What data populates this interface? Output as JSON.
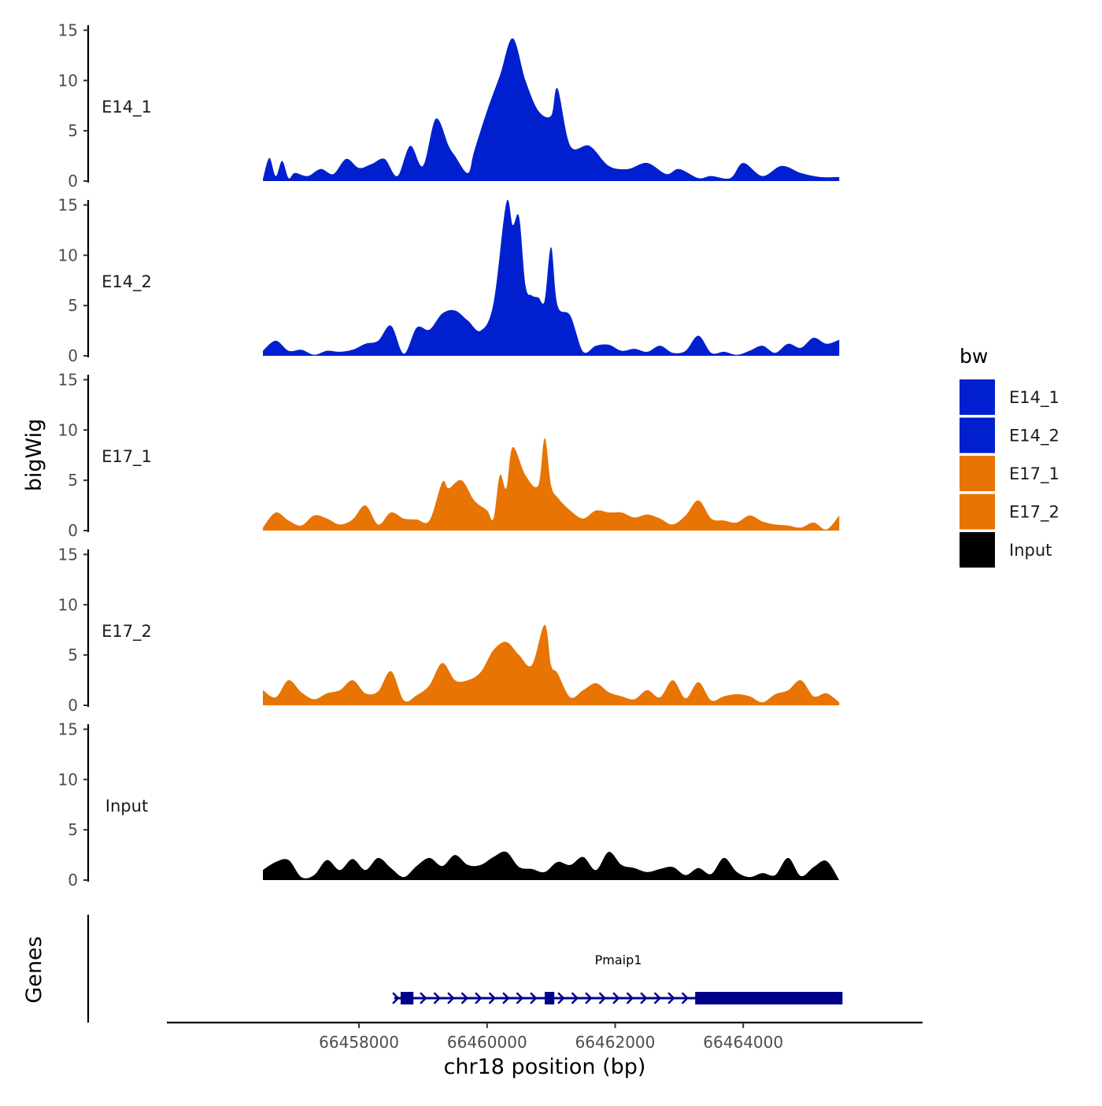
{
  "chart_data": {
    "type": "area",
    "title": "",
    "xlabel": "chr18 position (bp)",
    "ylabel": "bigWig",
    "gene_track_label": "Genes",
    "xlim": [
      66455000,
      66466800
    ],
    "x_ticks": [
      66458000,
      66460000,
      66462000,
      66464000
    ],
    "x_tick_labels": [
      "66458000",
      "66460000",
      "66462000",
      "66464000"
    ],
    "ylim": [
      0,
      15.5
    ],
    "y_ticks": [
      0,
      5,
      10,
      15
    ],
    "y_tick_labels": [
      "0",
      "5",
      "10",
      "15"
    ],
    "legend": {
      "title": "bw",
      "position": "right",
      "entries": [
        {
          "name": "E14_1",
          "color": "#0020CF"
        },
        {
          "name": "E14_2",
          "color": "#0020CF"
        },
        {
          "name": "E17_1",
          "color": "#E87404"
        },
        {
          "name": "E17_2",
          "color": "#E87404"
        },
        {
          "name": "Input",
          "color": "#000000"
        }
      ]
    },
    "series": [
      {
        "name": "E14_1",
        "color": "#0020CF",
        "x": [
          66456500,
          66456600,
          66456700,
          66456800,
          66456900,
          66457000,
          66457200,
          66457400,
          66457600,
          66457800,
          66458000,
          66458200,
          66458400,
          66458600,
          66458800,
          66459000,
          66459200,
          66459400,
          66459500,
          66459700,
          66459800,
          66460000,
          66460200,
          66460400,
          66460600,
          66460800,
          66461000,
          66461100,
          66461300,
          66461600,
          66461900,
          66462200,
          66462500,
          66462800,
          66463000,
          66463300,
          66463500,
          66463800,
          66464000,
          66464300,
          66464600,
          66464900,
          66465200,
          66465500
        ],
        "values": [
          0.2,
          2.3,
          0.5,
          2,
          0.3,
          0.8,
          0.5,
          1.2,
          0.7,
          2.2,
          1.3,
          1.7,
          2.2,
          0.5,
          3.5,
          1.5,
          6.2,
          3.5,
          2.5,
          0.8,
          3,
          7,
          10.5,
          14.2,
          10,
          7,
          6.5,
          9.2,
          3.5,
          3.5,
          1.5,
          1.2,
          1.8,
          0.7,
          1.2,
          0.3,
          0.5,
          0.3,
          1.8,
          0.5,
          1.5,
          0.8,
          0.4,
          0.4
        ]
      },
      {
        "name": "E14_2",
        "color": "#0020CF",
        "x": [
          66456500,
          66456700,
          66456900,
          66457100,
          66457300,
          66457500,
          66457700,
          66457900,
          66458100,
          66458300,
          66458500,
          66458700,
          66458900,
          66459100,
          66459300,
          66459500,
          66459700,
          66459900,
          66460100,
          66460300,
          66460400,
          66460500,
          66460600,
          66460700,
          66460800,
          66460900,
          66461000,
          66461100,
          66461300,
          66461500,
          66461700,
          66461900,
          66462100,
          66462300,
          66462500,
          66462700,
          66462900,
          66463100,
          66463300,
          66463500,
          66463700,
          66463900,
          66464100,
          66464300,
          66464500,
          66464700,
          66464900,
          66465100,
          66465300,
          66465500
        ],
        "values": [
          0.5,
          1.5,
          0.5,
          0.6,
          0.1,
          0.5,
          0.4,
          0.6,
          1.2,
          1.5,
          3,
          0.2,
          2.8,
          2.6,
          4.2,
          4.5,
          3.5,
          2.5,
          5.2,
          15.2,
          13,
          13.8,
          7,
          6,
          5.8,
          5.5,
          10.8,
          5,
          4,
          0.4,
          1,
          1.1,
          0.5,
          0.7,
          0.4,
          1,
          0.3,
          0.5,
          2,
          0.3,
          0.4,
          0.1,
          0.5,
          1,
          0.3,
          1.2,
          0.8,
          1.8,
          1.2,
          1.6
        ]
      },
      {
        "name": "E17_1",
        "color": "#E87404",
        "x": [
          66456500,
          66456700,
          66456900,
          66457100,
          66457300,
          66457500,
          66457700,
          66457900,
          66458100,
          66458300,
          66458500,
          66458700,
          66458900,
          66459100,
          66459300,
          66459400,
          66459600,
          66459800,
          66460000,
          66460100,
          66460200,
          66460300,
          66460400,
          66460600,
          66460800,
          66460900,
          66461000,
          66461100,
          66461300,
          66461500,
          66461700,
          66461900,
          66462100,
          66462300,
          66462500,
          66462700,
          66462900,
          66463100,
          66463300,
          66463500,
          66463700,
          66463900,
          66464100,
          66464300,
          66464500,
          66464700,
          66464900,
          66465100,
          66465300,
          66465500
        ],
        "values": [
          0.3,
          1.8,
          1,
          0.5,
          1.5,
          1.2,
          0.6,
          1.1,
          2.5,
          0.6,
          1.8,
          1.2,
          1.1,
          1,
          4.8,
          4.2,
          5,
          3,
          2,
          1.2,
          5.5,
          4.2,
          8.3,
          5.5,
          4.5,
          9.2,
          4.5,
          3.3,
          2,
          1.2,
          2,
          1.8,
          1.8,
          1.3,
          1.6,
          1.2,
          0.6,
          1.5,
          3,
          1.2,
          1,
          0.8,
          1.5,
          0.9,
          0.6,
          0.5,
          0.3,
          0.8,
          0.1,
          1.5
        ]
      },
      {
        "name": "E17_2",
        "color": "#E87404",
        "x": [
          66456500,
          66456700,
          66456900,
          66457100,
          66457300,
          66457500,
          66457700,
          66457900,
          66458100,
          66458300,
          66458500,
          66458700,
          66458900,
          66459100,
          66459300,
          66459500,
          66459700,
          66459900,
          66460100,
          66460300,
          66460500,
          66460700,
          66460900,
          66461000,
          66461100,
          66461300,
          66461500,
          66461700,
          66461900,
          66462100,
          66462300,
          66462500,
          66462700,
          66462900,
          66463100,
          66463300,
          66463500,
          66463700,
          66463900,
          66464100,
          66464300,
          66464500,
          66464700,
          66464900,
          66465100,
          66465300,
          66465500
        ],
        "values": [
          1.5,
          0.8,
          2.5,
          1.3,
          0.6,
          1.2,
          1.5,
          2.5,
          1.2,
          1.4,
          3.4,
          0.5,
          1,
          2,
          4.2,
          2.5,
          2.5,
          3.3,
          5.5,
          6.3,
          5,
          4,
          8,
          4,
          3.2,
          0.8,
          1.5,
          2.2,
          1.3,
          0.9,
          0.6,
          1.5,
          0.8,
          2.5,
          0.7,
          2.3,
          0.5,
          0.9,
          1.1,
          0.9,
          0.3,
          1.1,
          1.5,
          2.5,
          0.9,
          1.2,
          0.3
        ]
      },
      {
        "name": "Input",
        "color": "#000000",
        "x": [
          66456500,
          66456700,
          66456900,
          66457100,
          66457300,
          66457500,
          66457700,
          66457900,
          66458100,
          66458300,
          66458500,
          66458700,
          66458900,
          66459100,
          66459300,
          66459500,
          66459700,
          66459900,
          66460100,
          66460300,
          66460500,
          66460700,
          66460900,
          66461100,
          66461300,
          66461500,
          66461700,
          66461900,
          66462100,
          66462300,
          66462500,
          66462700,
          66462900,
          66463100,
          66463300,
          66463500,
          66463700,
          66463900,
          66464100,
          66464300,
          66464500,
          66464700,
          66464900,
          66465100,
          66465300,
          66465500
        ],
        "values": [
          1,
          1.8,
          2,
          0.3,
          0.5,
          2,
          1,
          2.1,
          1,
          2.2,
          1.2,
          0.3,
          1.4,
          2.2,
          1.4,
          2.5,
          1.5,
          1.5,
          2.3,
          2.8,
          1.3,
          1.1,
          0.8,
          1.8,
          1.5,
          2.3,
          1,
          2.8,
          1.5,
          1.2,
          0.8,
          1.1,
          1.3,
          0.5,
          1.2,
          0.6,
          2.2,
          0.8,
          0.3,
          0.7,
          0.5,
          2.2,
          0.4,
          1.3,
          1.9,
          0
        ]
      }
    ],
    "gene": {
      "name": "Pmaip1",
      "strand": "+",
      "color": "#00008B",
      "start": 66458550,
      "end": 66465550,
      "exons": [
        {
          "start": 66458650,
          "end": 66458850,
          "type": "utr"
        },
        {
          "start": 66460900,
          "end": 66461050,
          "type": "utr"
        },
        {
          "start": 66463250,
          "end": 66465550,
          "type": "cds"
        }
      ]
    }
  }
}
